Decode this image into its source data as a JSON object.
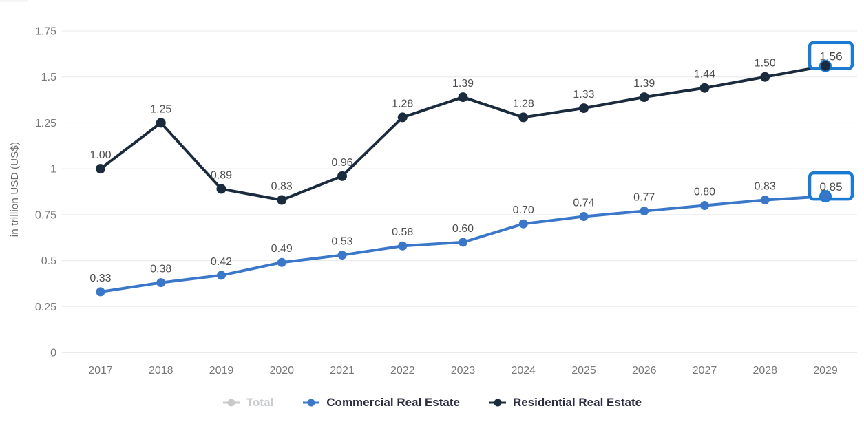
{
  "decoration": {
    "top_strip_color": "#f6f6f6"
  },
  "chart_data": {
    "type": "line",
    "ylabel": "in trillion USD (US$)",
    "x": [
      "2017",
      "2018",
      "2019",
      "2020",
      "2021",
      "2022",
      "2023",
      "2024",
      "2025",
      "2026",
      "2027",
      "2028",
      "2029"
    ],
    "yticks": [
      "1.75",
      "1.5",
      "1.25",
      "1",
      "0.75",
      "0.5",
      "0.25",
      "0"
    ],
    "ylim": [
      0,
      1.75
    ],
    "grid": true,
    "legend_position": "bottom",
    "label_format": "2dp",
    "highlight_last": true,
    "highlight_color": "#1b7ad2",
    "colors": {
      "grid_line": "#e8e8e8",
      "axis_line": "#d6d6d6",
      "tick_text": "#777777",
      "data_label": "#4f4f4f",
      "callout_text": "#4a4a4a"
    },
    "series": [
      {
        "name": "Total",
        "color": "#c9c9c9",
        "disabled": true,
        "marker_radius": 6.5,
        "values": []
      },
      {
        "name": "Commercial Real Estate",
        "color": "#3a77c9",
        "disabled": false,
        "marker_radius": 6.5,
        "values": [
          0.33,
          0.38,
          0.42,
          0.49,
          0.53,
          0.58,
          0.6,
          0.7,
          0.74,
          0.77,
          0.8,
          0.83,
          0.85
        ],
        "last_label": "0.85"
      },
      {
        "name": "Residential Real Estate",
        "color": "#1b2b3e",
        "disabled": false,
        "marker_radius": 7,
        "values": [
          1.0,
          1.25,
          0.89,
          0.83,
          0.96,
          1.28,
          1.39,
          1.28,
          1.33,
          1.39,
          1.44,
          1.5,
          1.56
        ],
        "last_label": "1.56"
      }
    ]
  },
  "legend": {
    "active_text": "#2c2c41",
    "disabled_text": "#c9cccf"
  }
}
